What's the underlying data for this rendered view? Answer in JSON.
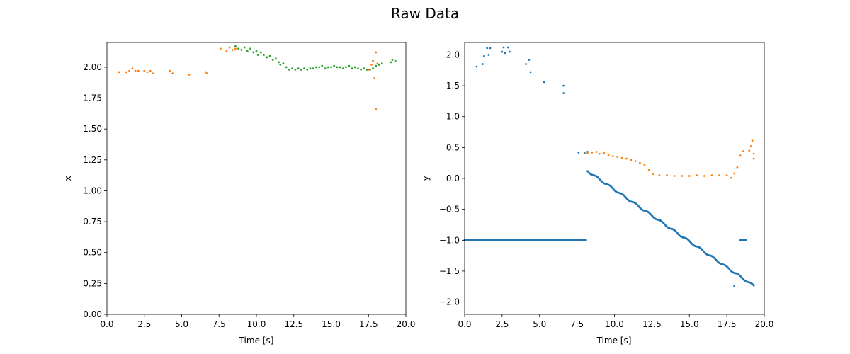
{
  "figure": {
    "title": "Raw Data"
  },
  "colors": {
    "blue": "#1f77b4",
    "orange": "#ff7f0e",
    "green": "#2ca02c"
  },
  "chart_data": [
    {
      "type": "scatter",
      "xlabel": "Time [s]",
      "ylabel": "x",
      "xlim": [
        0,
        20
      ],
      "ylim": [
        0,
        2.2
      ],
      "xticks": [
        "0.0",
        "2.5",
        "5.0",
        "7.5",
        "10.0",
        "12.5",
        "15.0",
        "17.5",
        "20.0"
      ],
      "yticks": [
        "0.00",
        "0.25",
        "0.50",
        "0.75",
        "1.00",
        "1.25",
        "1.50",
        "1.75",
        "2.00"
      ],
      "grid": false,
      "series": [
        {
          "color": "#ff7f0e",
          "points": [
            [
              0.8,
              1.96
            ],
            [
              1.3,
              1.96
            ],
            [
              1.5,
              1.97
            ],
            [
              1.7,
              1.99
            ],
            [
              1.9,
              1.97
            ],
            [
              2.1,
              1.97
            ],
            [
              2.5,
              1.97
            ],
            [
              2.7,
              1.96
            ],
            [
              2.9,
              1.97
            ],
            [
              3.1,
              1.95
            ],
            [
              4.2,
              1.97
            ],
            [
              4.4,
              1.95
            ],
            [
              5.5,
              1.94
            ],
            [
              6.6,
              1.96
            ],
            [
              6.7,
              1.95
            ],
            [
              7.6,
              2.15
            ],
            [
              8.0,
              2.13
            ],
            [
              8.2,
              2.16
            ],
            [
              8.4,
              2.14
            ],
            [
              8.6,
              2.15
            ],
            [
              17.5,
              1.98
            ],
            [
              17.7,
              2.02
            ],
            [
              17.8,
              2.05
            ],
            [
              17.9,
              1.91
            ],
            [
              18.0,
              1.66
            ],
            [
              18.0,
              2.12
            ],
            [
              18.1,
              2.03
            ]
          ]
        },
        {
          "color": "#2ca02c",
          "points": [
            [
              8.6,
              2.17
            ],
            [
              8.8,
              2.15
            ],
            [
              9.0,
              2.14
            ],
            [
              9.2,
              2.16
            ],
            [
              9.4,
              2.13
            ],
            [
              9.6,
              2.15
            ],
            [
              9.8,
              2.12
            ],
            [
              10.0,
              2.13
            ],
            [
              10.1,
              2.1
            ],
            [
              10.3,
              2.12
            ],
            [
              10.5,
              2.1
            ],
            [
              10.7,
              2.08
            ],
            [
              10.9,
              2.09
            ],
            [
              11.1,
              2.06
            ],
            [
              11.3,
              2.07
            ],
            [
              11.5,
              2.04
            ],
            [
              11.6,
              2.02
            ],
            [
              11.8,
              2.03
            ],
            [
              12.0,
              2.0
            ],
            [
              12.2,
              1.98
            ],
            [
              12.4,
              1.99
            ],
            [
              12.6,
              1.98
            ],
            [
              12.8,
              1.99
            ],
            [
              13.0,
              1.98
            ],
            [
              13.2,
              1.99
            ],
            [
              13.4,
              1.98
            ],
            [
              13.6,
              1.99
            ],
            [
              13.8,
              1.99
            ],
            [
              14.0,
              2.0
            ],
            [
              14.2,
              2.0
            ],
            [
              14.4,
              2.01
            ],
            [
              14.6,
              1.99
            ],
            [
              14.8,
              2.0
            ],
            [
              15.0,
              2.0
            ],
            [
              15.2,
              2.01
            ],
            [
              15.4,
              2.0
            ],
            [
              15.6,
              2.0
            ],
            [
              15.8,
              1.99
            ],
            [
              16.0,
              2.0
            ],
            [
              16.2,
              2.01
            ],
            [
              16.4,
              1.99
            ],
            [
              16.6,
              2.0
            ],
            [
              16.8,
              1.99
            ],
            [
              17.0,
              1.98
            ],
            [
              17.2,
              1.99
            ],
            [
              17.4,
              1.98
            ],
            [
              17.6,
              1.98
            ],
            [
              17.8,
              1.99
            ],
            [
              18.0,
              2.01
            ],
            [
              18.2,
              2.02
            ],
            [
              18.4,
              2.03
            ],
            [
              19.0,
              2.04
            ],
            [
              19.1,
              2.06
            ],
            [
              19.3,
              2.05
            ]
          ]
        }
      ]
    },
    {
      "type": "scatter",
      "xlabel": "Time [s]",
      "ylabel": "y",
      "xlim": [
        0,
        20
      ],
      "ylim": [
        -2.2,
        2.2
      ],
      "xticks": [
        "0.0",
        "2.5",
        "5.0",
        "7.5",
        "10.0",
        "12.5",
        "15.0",
        "17.5",
        "20.0"
      ],
      "yticks": [
        "−2.0",
        "−1.5",
        "−1.0",
        "−0.5",
        "0.0",
        "0.5",
        "1.0",
        "1.5",
        "2.0"
      ],
      "grid": false,
      "series": [
        {
          "color": "#1f77b4",
          "points": [
            [
              0.8,
              1.81
            ],
            [
              1.2,
              1.85
            ],
            [
              1.3,
              1.98
            ],
            [
              1.5,
              2.11
            ],
            [
              1.6,
              2.0
            ],
            [
              1.7,
              2.11
            ],
            [
              2.1,
              2.21
            ],
            [
              2.5,
              2.05
            ],
            [
              2.6,
              2.12
            ],
            [
              2.7,
              2.03
            ],
            [
              2.9,
              2.12
            ],
            [
              3.0,
              2.05
            ],
            [
              4.1,
              1.85
            ],
            [
              4.3,
              1.92
            ],
            [
              4.4,
              1.72
            ],
            [
              5.3,
              1.56
            ],
            [
              6.6,
              1.5
            ],
            [
              6.6,
              1.38
            ],
            [
              7.6,
              0.42
            ],
            [
              8.0,
              0.41
            ],
            [
              8.2,
              0.43
            ]
          ]
        },
        {
          "color": "#ff7f0e",
          "points": [
            [
              8.2,
              0.41
            ],
            [
              8.5,
              0.42
            ],
            [
              8.8,
              0.43
            ],
            [
              9.0,
              0.4
            ],
            [
              9.3,
              0.41
            ],
            [
              9.6,
              0.38
            ],
            [
              9.9,
              0.36
            ],
            [
              10.2,
              0.35
            ],
            [
              10.5,
              0.33
            ],
            [
              10.8,
              0.32
            ],
            [
              11.1,
              0.3
            ],
            [
              11.4,
              0.28
            ],
            [
              11.7,
              0.25
            ],
            [
              12.0,
              0.22
            ],
            [
              12.3,
              0.14
            ],
            [
              12.6,
              0.07
            ],
            [
              13.0,
              0.05
            ],
            [
              13.5,
              0.05
            ],
            [
              14.0,
              0.04
            ],
            [
              14.5,
              0.04
            ],
            [
              15.0,
              0.04
            ],
            [
              15.5,
              0.05
            ],
            [
              16.0,
              0.04
            ],
            [
              16.5,
              0.05
            ],
            [
              17.0,
              0.05
            ],
            [
              17.5,
              0.05
            ],
            [
              17.8,
              0.01
            ],
            [
              18.0,
              0.08
            ],
            [
              18.2,
              0.18
            ],
            [
              18.4,
              0.37
            ],
            [
              18.6,
              0.44
            ],
            [
              19.0,
              0.45
            ],
            [
              19.1,
              0.52
            ],
            [
              19.2,
              0.61
            ],
            [
              19.3,
              0.4
            ],
            [
              19.3,
              0.32
            ]
          ]
        }
      ]
    }
  ]
}
